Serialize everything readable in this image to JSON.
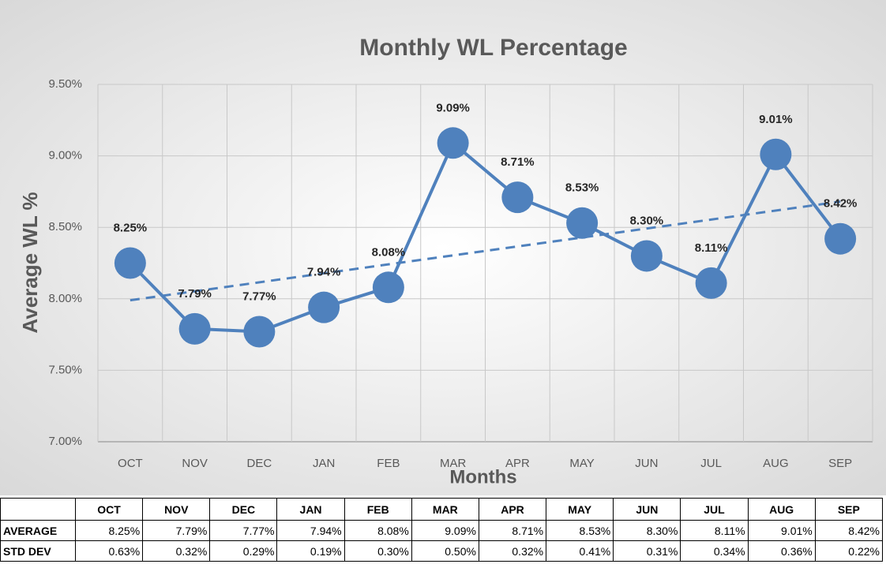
{
  "chart_data": {
    "type": "line",
    "title": "Monthly WL Percentage",
    "x_label": "Months",
    "y_label": "Average WL %",
    "categories": [
      "OCT",
      "NOV",
      "DEC",
      "JAN",
      "FEB",
      "MAR",
      "APR",
      "MAY",
      "JUN",
      "JUL",
      "AUG",
      "SEP"
    ],
    "series": [
      {
        "name": "Average WL %",
        "color": "#4f81bd",
        "values": [
          8.25,
          7.79,
          7.77,
          7.94,
          8.08,
          9.09,
          8.71,
          8.53,
          8.3,
          8.11,
          9.01,
          8.42
        ],
        "value_labels": [
          "8.25%",
          "7.79%",
          "7.77%",
          "7.94%",
          "8.08%",
          "9.09%",
          "8.71%",
          "8.53%",
          "8.30%",
          "8.11%",
          "9.01%",
          "8.42%"
        ]
      }
    ],
    "trendline": {
      "color": "#4f81bd",
      "values": [
        7.99,
        8.68
      ]
    },
    "ylim": [
      7.0,
      9.5
    ],
    "yticks": [
      {
        "value": 7.0,
        "label": "7.00%"
      },
      {
        "value": 7.5,
        "label": "7.50%"
      },
      {
        "value": 8.0,
        "label": "8.00%"
      },
      {
        "value": 8.5,
        "label": "8.50%"
      },
      {
        "value": 9.0,
        "label": "9.00%"
      },
      {
        "value": 9.5,
        "label": "9.50%"
      }
    ],
    "grid": true
  },
  "table": {
    "columns": [
      "OCT",
      "NOV",
      "DEC",
      "JAN",
      "FEB",
      "MAR",
      "APR",
      "MAY",
      "JUN",
      "JUL",
      "AUG",
      "SEP"
    ],
    "rows": [
      [
        "AVERAGE",
        "8.25%",
        "7.79%",
        "7.77%",
        "7.94%",
        "8.08%",
        "9.09%",
        "8.71%",
        "8.53%",
        "8.30%",
        "8.11%",
        "9.01%",
        "8.42%"
      ],
      [
        "STD DEV",
        "0.63%",
        "0.32%",
        "0.29%",
        "0.19%",
        "0.30%",
        "0.50%",
        "0.32%",
        "0.41%",
        "0.31%",
        "0.34%",
        "0.36%",
        "0.22%"
      ]
    ]
  }
}
